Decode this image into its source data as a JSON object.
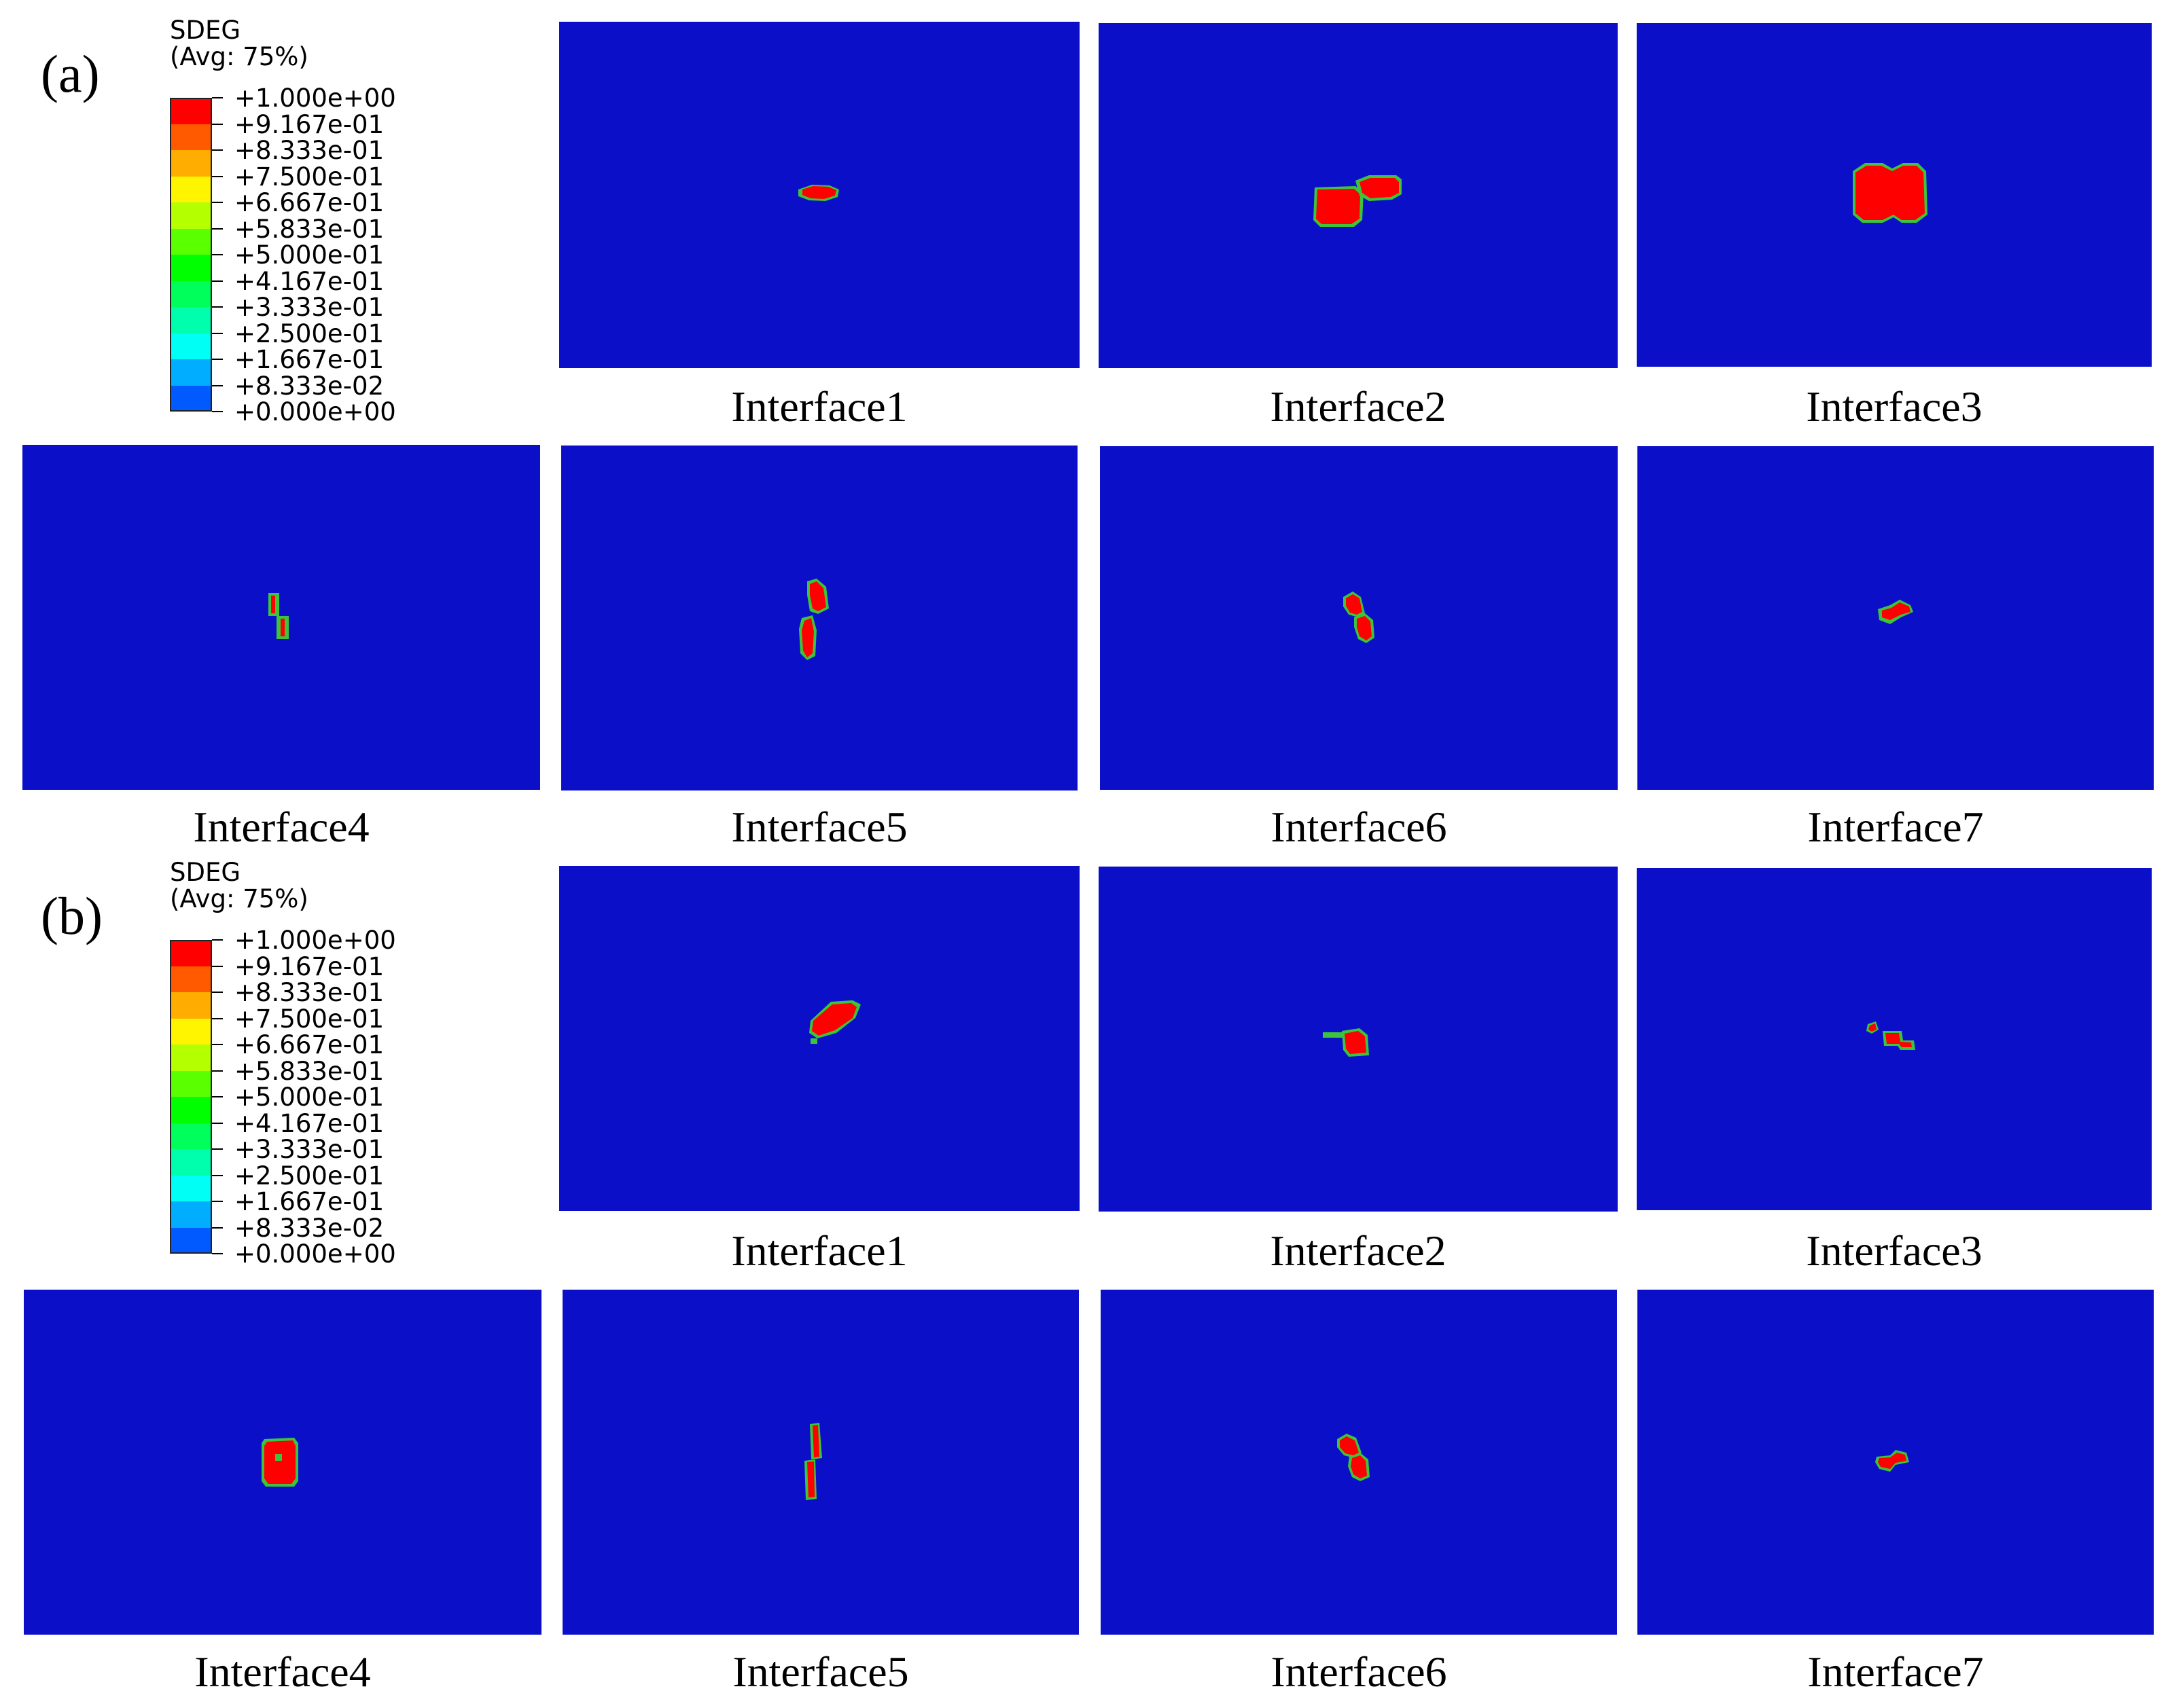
{
  "figure": {
    "sections": [
      {
        "id": "a",
        "label": "(a)",
        "legend": {
          "variable": "SDEG",
          "averaging": "(Avg: 75%)",
          "values": [
            "+1.000e+00",
            "+9.167e-01",
            "+8.333e-01",
            "+7.500e-01",
            "+6.667e-01",
            "+5.833e-01",
            "+5.000e-01",
            "+4.167e-01",
            "+3.333e-01",
            "+2.500e-01",
            "+1.667e-01",
            "+8.333e-02",
            "+0.000e+00"
          ],
          "colors": [
            "#ff0000",
            "#ff5a00",
            "#ffad00",
            "#fff500",
            "#b4ff00",
            "#5aff00",
            "#00ff00",
            "#00ff5a",
            "#00ffad",
            "#00fff5",
            "#00adff",
            "#005aff",
            "#0000ff"
          ]
        },
        "panels": [
          {
            "caption": "Interface1"
          },
          {
            "caption": "Interface2"
          },
          {
            "caption": "Interface3"
          },
          {
            "caption": "Interface4"
          },
          {
            "caption": "Interface5"
          },
          {
            "caption": "Interface6"
          },
          {
            "caption": "Interface7"
          }
        ]
      },
      {
        "id": "b",
        "label": "(b)",
        "legend": {
          "variable": "SDEG",
          "averaging": "(Avg: 75%)",
          "values": [
            "+1.000e+00",
            "+9.167e-01",
            "+8.333e-01",
            "+7.500e-01",
            "+6.667e-01",
            "+5.833e-01",
            "+5.000e-01",
            "+4.167e-01",
            "+3.333e-01",
            "+2.500e-01",
            "+1.667e-01",
            "+8.333e-02",
            "+0.000e+00"
          ],
          "colors": [
            "#ff0000",
            "#ff5a00",
            "#ffad00",
            "#fff500",
            "#b4ff00",
            "#5aff00",
            "#00ff00",
            "#00ff5a",
            "#00ffad",
            "#00fff5",
            "#00adff",
            "#005aff",
            "#0000ff"
          ]
        },
        "panels": [
          {
            "caption": "Interface1"
          },
          {
            "caption": "Interface2"
          },
          {
            "caption": "Interface3"
          },
          {
            "caption": "Interface4"
          },
          {
            "caption": "Interface5"
          },
          {
            "caption": "Interface6"
          },
          {
            "caption": "Interface7"
          }
        ]
      }
    ],
    "colors": {
      "background_field": "#0b10c8",
      "damage": "#ff0000",
      "damage_edge": "#3cc43c"
    }
  }
}
